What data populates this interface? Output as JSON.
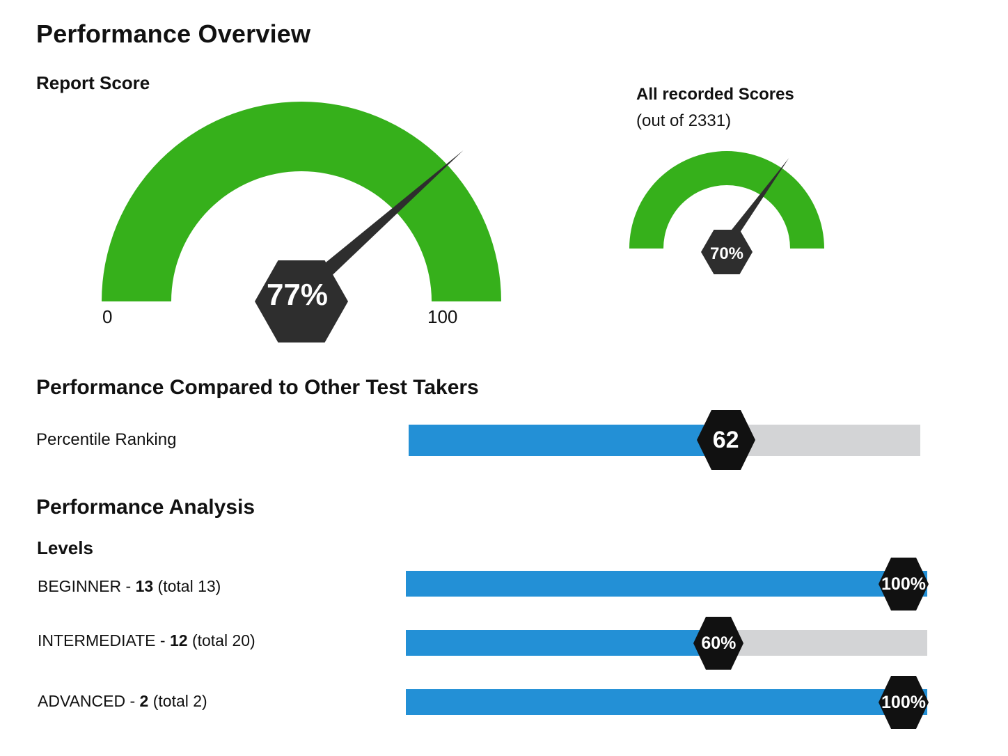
{
  "header": {
    "title": "Performance Overview"
  },
  "report_score": {
    "label": "Report Score",
    "value": 77,
    "value_text": "77%",
    "min_label": "0",
    "max_label": "100"
  },
  "all_scores": {
    "label": "All recorded Scores",
    "sublabel": "(out of 2331)",
    "value": 70,
    "value_text": "70%"
  },
  "comparison": {
    "title": "Performance Compared to Other Test Takers",
    "percentile_label": "Percentile Ranking",
    "percentile_value": 62,
    "percentile_text": "62"
  },
  "analysis": {
    "title": "Performance Analysis",
    "levels_label": "Levels",
    "levels": [
      {
        "name": "BEGINNER - ",
        "score": "13",
        "total": " (total 13)",
        "percent": 100,
        "percent_text": "100%"
      },
      {
        "name": "INTERMEDIATE - ",
        "score": "12",
        "total": " (total 20)",
        "percent": 60,
        "percent_text": "60%"
      },
      {
        "name": "ADVANCED - ",
        "score": "2",
        "total": " (total 2)",
        "percent": 100,
        "percent_text": "100%"
      }
    ]
  },
  "colors": {
    "gauge_green": "#36b01b",
    "bar_blue": "#2390d6",
    "bar_track": "#d3d4d6",
    "badge": "#2e2e2e"
  }
}
